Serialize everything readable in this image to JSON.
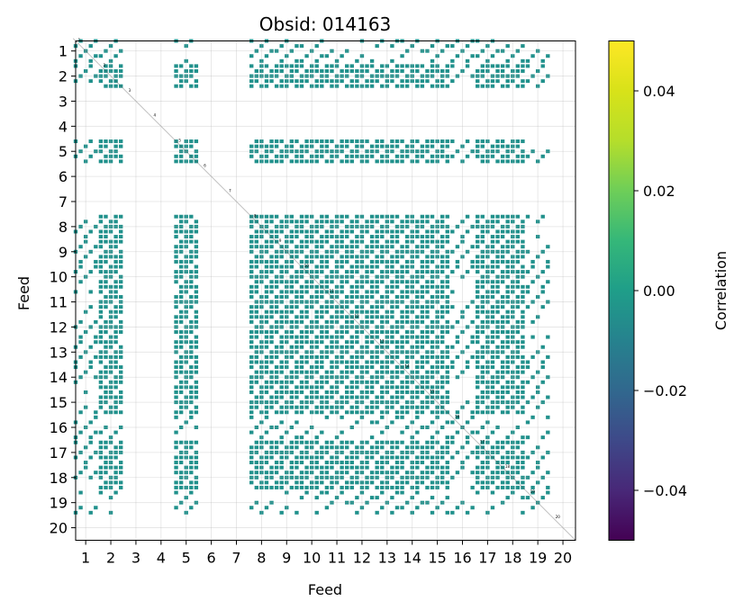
{
  "chart_data": {
    "type": "heatmap",
    "title": "Obsid: 014163",
    "xlabel": "Feed",
    "ylabel": "Feed",
    "x_ticks": [
      "1",
      "2",
      "3",
      "4",
      "5",
      "6",
      "7",
      "8",
      "9",
      "10",
      "11",
      "12",
      "13",
      "14",
      "15",
      "16",
      "17",
      "18",
      "19",
      "20"
    ],
    "y_ticks": [
      "1",
      "2",
      "3",
      "4",
      "5",
      "6",
      "7",
      "8",
      "9",
      "10",
      "11",
      "12",
      "13",
      "14",
      "15",
      "16",
      "17",
      "18",
      "19",
      "20"
    ],
    "xlim": [
      0.6,
      20.5
    ],
    "ylim": [
      20.5,
      0.6
    ],
    "grid": true,
    "colorbar": {
      "label": "Correlation",
      "range": [
        -0.05,
        0.05
      ],
      "ticks": [
        {
          "value": 0.04,
          "label": "0.04"
        },
        {
          "value": 0.02,
          "label": "0.02"
        },
        {
          "value": 0.0,
          "label": "0.00"
        },
        {
          "value": -0.02,
          "label": "−0.02"
        },
        {
          "value": -0.04,
          "label": "−0.04"
        }
      ],
      "colormap": "viridis"
    },
    "fill_value": 0.0,
    "fill_color": "#21918c",
    "active_feeds": [
      1,
      2,
      5,
      8,
      9,
      10,
      11,
      12,
      13,
      14,
      15,
      16,
      17,
      18,
      19
    ],
    "inactive_feeds": [
      3,
      4,
      6,
      7,
      20
    ],
    "diagonal_labels": [
      "1",
      "2",
      "3",
      "4",
      "5",
      "6",
      "7",
      "8",
      "9",
      "10",
      "11",
      "12",
      "13",
      "14",
      "15",
      "16",
      "17",
      "18",
      "19",
      "20"
    ]
  }
}
